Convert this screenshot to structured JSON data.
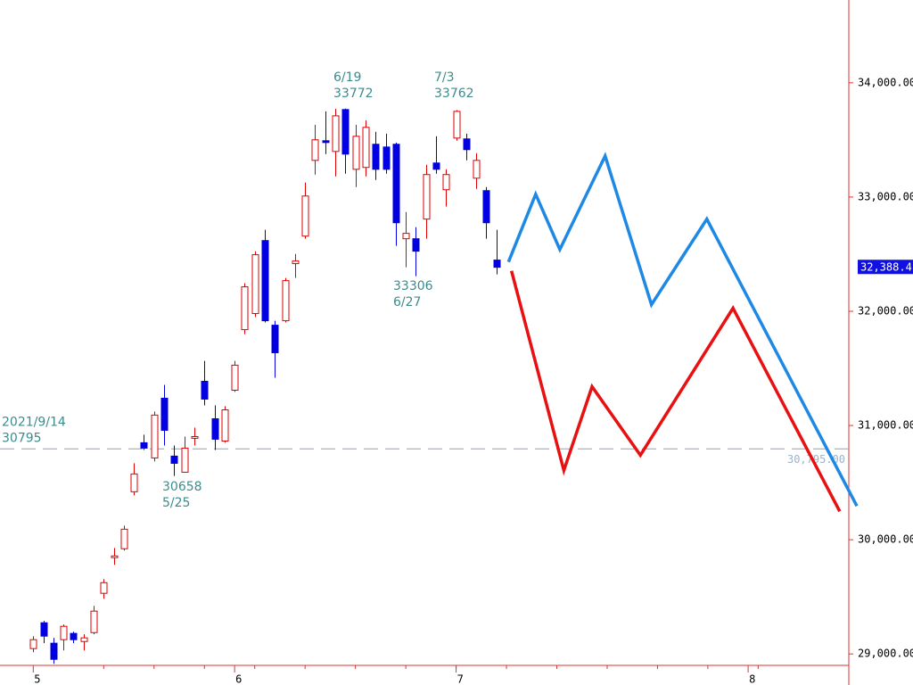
{
  "chart_data": {
    "type": "candlestick",
    "x": [
      0,
      1,
      2,
      3,
      4,
      5,
      6,
      7,
      8,
      9,
      10,
      11,
      12,
      13,
      14,
      15,
      16,
      17,
      18,
      19,
      20,
      21,
      22,
      23,
      24,
      25,
      26,
      27,
      28,
      29,
      30,
      31,
      32,
      33,
      34,
      35,
      36,
      37,
      38,
      39,
      40,
      41,
      42,
      43,
      44,
      45,
      46
    ],
    "open": [
      29047,
      29273,
      29094,
      29125,
      29180,
      29109,
      29187,
      29531,
      29843,
      29921,
      30420,
      30849,
      30716,
      31239,
      30732,
      30591,
      30888,
      31387,
      31059,
      30864,
      31309,
      31839,
      31980,
      32619,
      31878,
      31917,
      32417,
      32658,
      33321,
      33493,
      33399,
      33766,
      33243,
      33259,
      33462,
      33438,
      33462,
      32635,
      32635,
      32807,
      33298,
      33064,
      33516,
      33509,
      33165,
      33056,
      32448
    ],
    "high": [
      29156,
      29289,
      29141,
      29258,
      29195,
      29172,
      29421,
      29655,
      29928,
      30123,
      30670,
      30919,
      31122,
      31356,
      30825,
      30903,
      30981,
      31566,
      31176,
      31169,
      31566,
      32245,
      32526,
      32713,
      31917,
      32292,
      32502,
      33126,
      33633,
      33750,
      33772,
      33774,
      33633,
      33672,
      33571,
      33555,
      33477,
      32869,
      32736,
      33282,
      33532,
      33243,
      33762,
      33555,
      33384,
      33087,
      32713
    ],
    "low": [
      29016,
      29094,
      28914,
      29031,
      29094,
      29031,
      29172,
      29484,
      29780,
      29905,
      30389,
      30786,
      30685,
      30825,
      30558,
      30591,
      30825,
      31176,
      30786,
      30849,
      31294,
      31800,
      31949,
      31902,
      31418,
      31902,
      32292,
      32635,
      33197,
      33376,
      33181,
      33204,
      33087,
      33181,
      33150,
      33204,
      32573,
      32385,
      32307,
      32635,
      33204,
      32916,
      33493,
      33321,
      33072,
      32635,
      32323
    ],
    "close": [
      29125,
      29156,
      28953,
      29242,
      29125,
      29141,
      29375,
      29624,
      29858,
      30092,
      30576,
      30802,
      31091,
      30958,
      30669,
      30802,
      30903,
      31231,
      30880,
      31137,
      31528,
      32214,
      32495,
      31917,
      31637,
      32268,
      32440,
      33009,
      33501,
      33477,
      33711,
      33376,
      33532,
      33610,
      33243,
      33243,
      32775,
      32682,
      32526,
      33197,
      33243,
      33197,
      33750,
      33415,
      33321,
      32775,
      32385
    ],
    "up_color": "#e00000",
    "down_color": "#0000e0",
    "xlim": [
      -3.3,
      81
    ],
    "xticks": [
      {
        "value": 0,
        "label": "5"
      },
      {
        "value": 20,
        "label": "6"
      },
      {
        "value": 42,
        "label": "7"
      },
      {
        "value": 71,
        "label": "8"
      }
    ],
    "ylim": [
      28900,
      34725
    ],
    "yticks": [
      {
        "value": 29000,
        "label": "29,000.00"
      },
      {
        "value": 30000,
        "label": "30,000.00"
      },
      {
        "value": 31000,
        "label": "31,000.00"
      },
      {
        "value": 32000,
        "label": "32,000.00"
      },
      {
        "value": 33000,
        "label": "33,000.00"
      },
      {
        "value": 34000,
        "label": "34,000.00"
      }
    ],
    "lines": [
      {
        "color": "#1e88e5",
        "x": [
          47.2,
          49.9,
          52.3,
          56.8,
          61.4,
          66.9,
          81.8
        ],
        "values": [
          32432,
          33025,
          32541,
          33360,
          32058,
          32807,
          30295
        ]
      },
      {
        "color": "#e81010",
        "x": [
          47.5,
          52.7,
          55.5,
          60.3,
          69.5,
          80.1
        ],
        "values": [
          32354,
          30607,
          31340,
          30740,
          32027,
          30248
        ]
      }
    ],
    "reference_line": {
      "value": 30795,
      "label": "30,795.00",
      "date": "2021/9/14",
      "text": "30795"
    },
    "last_price": {
      "value": 32388.4,
      "label": "32,388.4"
    },
    "annotations": [
      {
        "lines": [
          "6/19",
          "33772"
        ]
      },
      {
        "lines": [
          "7/3",
          "33762"
        ]
      },
      {
        "lines": [
          "33306",
          "6/27"
        ]
      },
      {
        "lines": [
          "30658",
          "5/25"
        ]
      }
    ]
  }
}
